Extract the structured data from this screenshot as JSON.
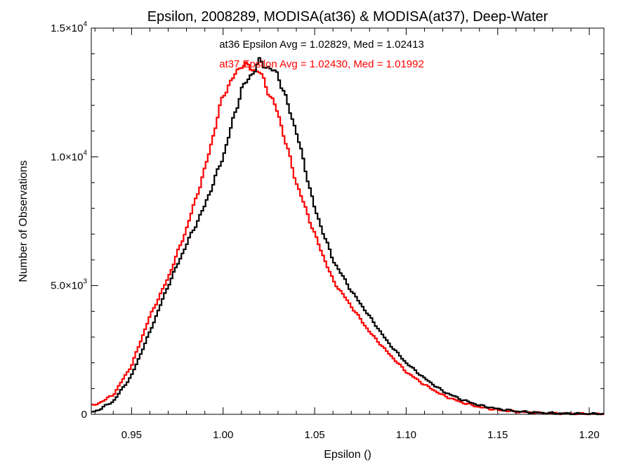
{
  "chart_data": {
    "type": "line",
    "title": "Epsilon, 2008289, MODISA(at36) & MODISA(at37), Deep-Water",
    "xlabel": "Epsilon ()",
    "ylabel": "Number of Observations",
    "xlim": [
      0.928,
      1.208
    ],
    "ylim": [
      0,
      15000
    ],
    "x_ticks": [
      {
        "value": 0.95,
        "label": "0.95"
      },
      {
        "value": 1.0,
        "label": "1.00"
      },
      {
        "value": 1.05,
        "label": "1.05"
      },
      {
        "value": 1.1,
        "label": "1.10"
      },
      {
        "value": 1.15,
        "label": "1.15"
      },
      {
        "value": 1.2,
        "label": "1.20"
      }
    ],
    "y_ticks": [
      {
        "value": 0,
        "mant": "0",
        "exp": ""
      },
      {
        "value": 5000,
        "mant": "5.0×10",
        "exp": "3"
      },
      {
        "value": 10000,
        "mant": "1.0×10",
        "exp": "4"
      },
      {
        "value": 15000,
        "mant": "1.5×10",
        "exp": "4"
      }
    ],
    "grid": false,
    "annotations": [
      {
        "text": "at36 Epsilon Avg = 1.02829, Med = 1.02413",
        "color": "#000000"
      },
      {
        "text": "at37 Epsilon Avg = 1.02430, Med = 1.01992",
        "color": "#ff0000"
      }
    ],
    "series": [
      {
        "color": "#000000",
        "x": [
          0.93,
          0.94,
          0.95,
          0.96,
          0.97,
          0.98,
          0.99,
          1.0,
          1.01,
          1.02,
          1.03,
          1.04,
          1.05,
          1.06,
          1.07,
          1.08,
          1.09,
          1.1,
          1.11,
          1.12,
          1.13,
          1.14,
          1.15,
          1.16,
          1.17,
          1.18,
          1.19,
          1.2,
          1.21
        ],
        "values": [
          100,
          500,
          1500,
          3200,
          5000,
          6600,
          8100,
          10000,
          12600,
          13700,
          13200,
          11000,
          8000,
          6000,
          4800,
          3800,
          2800,
          2000,
          1400,
          900,
          580,
          350,
          210,
          120,
          70,
          40,
          30,
          20,
          10
        ]
      },
      {
        "color": "#ff0000",
        "x": [
          0.93,
          0.94,
          0.95,
          0.96,
          0.97,
          0.98,
          0.99,
          1.0,
          1.01,
          1.02,
          1.03,
          1.04,
          1.05,
          1.06,
          1.07,
          1.08,
          1.09,
          1.1,
          1.11,
          1.12,
          1.13,
          1.14,
          1.15,
          1.16,
          1.17,
          1.18,
          1.19,
          1.2,
          1.21
        ],
        "values": [
          350,
          750,
          1900,
          3800,
          5300,
          7200,
          9500,
          12400,
          13600,
          13300,
          11700,
          9000,
          7000,
          5200,
          4200,
          3200,
          2400,
          1650,
          1150,
          740,
          470,
          280,
          170,
          100,
          60,
          35,
          25,
          15,
          8
        ]
      }
    ]
  }
}
